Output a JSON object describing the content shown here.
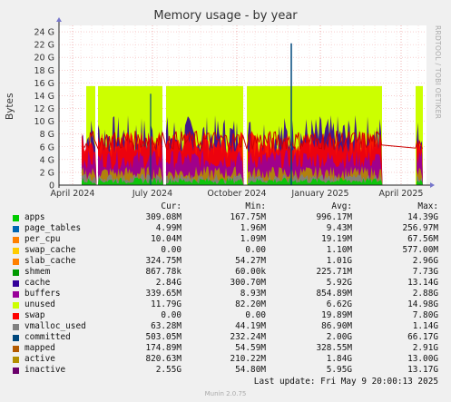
{
  "chart_data": {
    "type": "area",
    "title": "Memory usage - by year",
    "ylabel": "Bytes",
    "side_text": "RRDTOOL / TOBI OETIKER",
    "y_ticks": [
      "0",
      "2 G",
      "4 G",
      "6 G",
      "8 G",
      "10 G",
      "12 G",
      "14 G",
      "16 G",
      "18 G",
      "20 G",
      "22 G",
      "24 G"
    ],
    "ylim": [
      0,
      25
    ],
    "x_ticks": [
      "April 2024",
      "July 2024",
      "October 2024",
      "January 2025",
      "April 2025"
    ],
    "legend_headers": {
      "cur": "Cur:",
      "min": "Min:",
      "avg": "Avg:",
      "max": "Max:"
    },
    "series": [
      {
        "name": "apps",
        "color": "#00cc00",
        "cur": "309.08M",
        "min": "167.75M",
        "avg": "996.17M",
        "max": "14.39G"
      },
      {
        "name": "page_tables",
        "color": "#0066b3",
        "cur": "4.99M",
        "min": "1.96M",
        "avg": "9.43M",
        "max": "256.97M"
      },
      {
        "name": "per_cpu",
        "color": "#ff8000",
        "cur": "10.04M",
        "min": "1.09M",
        "avg": "19.19M",
        "max": "67.56M"
      },
      {
        "name": "swap_cache",
        "color": "#ffcc00",
        "cur": "0.00",
        "min": "0.00",
        "avg": "1.10M",
        "max": "577.00M"
      },
      {
        "name": "slab_cache",
        "color": "#330099",
        "cur": "324.75M",
        "min": "54.27M",
        "avg": "1.01G",
        "max": "2.96G"
      },
      {
        "name": "shmem",
        "color": "#990099",
        "cur": "867.78k",
        "min": "60.00k",
        "avg": "225.71M",
        "max": "7.73G"
      },
      {
        "name": "cache",
        "color": "#ccff00",
        "cur": "2.84G",
        "min": "300.70M",
        "avg": "5.92G",
        "max": "13.14G"
      },
      {
        "name": "buffers",
        "color": "#ff0000",
        "cur": "339.65M",
        "min": "8.93M",
        "avg": "854.89M",
        "max": "2.88G"
      },
      {
        "name": "unused",
        "color": "#808080",
        "cur": "11.79G",
        "min": "82.20M",
        "avg": "6.62G",
        "max": "14.98G"
      },
      {
        "name": "swap",
        "color": "#008f00",
        "cur": "0.00",
        "min": "0.00",
        "avg": "19.89M",
        "max": "7.80G"
      },
      {
        "name": "vmalloc_used",
        "color": "#00487d",
        "cur": "63.28M",
        "min": "44.19M",
        "avg": "86.90M",
        "max": "1.14G"
      },
      {
        "name": "committed",
        "color": "#b35a00",
        "cur": "503.05M",
        "min": "232.24M",
        "avg": "2.00G",
        "max": "66.17G"
      },
      {
        "name": "mapped",
        "color": "#b38f00",
        "cur": "174.89M",
        "min": "54.59M",
        "avg": "328.55M",
        "max": "2.91G"
      },
      {
        "name": "active",
        "color": "#6b006b",
        "cur": "820.63M",
        "min": "210.22M",
        "avg": "1.84G",
        "max": "13.00G"
      },
      {
        "name": "inactive",
        "color": "#8fb300",
        "cur": "2.55G",
        "min": "54.80M",
        "avg": "5.95G",
        "max": "13.17G"
      }
    ],
    "legend_colors_display": {
      "apps": "#00cc00",
      "page_tables": "#0066b3",
      "per_cpu": "#ff8000",
      "swap_cache": "#ffcc00",
      "slab_cache": "#ff8000",
      "shmem": "#009900",
      "cache": "#330099",
      "buffers": "#990099",
      "unused": "#ccff00",
      "swap": "#ff0000",
      "vmalloc_used": "#808080",
      "committed": "#00487d",
      "mapped": "#b35a00",
      "active": "#b38f00",
      "inactive": "#6b006b"
    },
    "last_update": "Last update: Fri May  9 20:00:13 2025",
    "footer": "Munin 2.0.75"
  }
}
